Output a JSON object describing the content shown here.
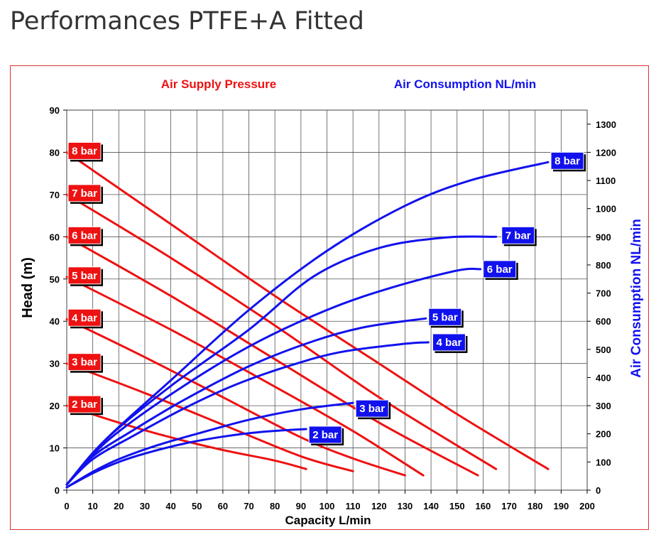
{
  "page": {
    "title": "Performances PTFE+A Fitted"
  },
  "chart_data": {
    "type": "line",
    "header_left": "Air Supply Pressure",
    "header_right": "Air Consumption NL/min",
    "xlabel": "Capacity L/min",
    "ylabel": "Head (m)",
    "y2label": "Air Consumption NL/min",
    "xlim": [
      0,
      200
    ],
    "ylim": [
      0,
      90
    ],
    "y2lim": [
      0,
      1350
    ],
    "x_ticks": [
      0,
      10,
      20,
      30,
      40,
      50,
      60,
      70,
      80,
      90,
      100,
      110,
      120,
      130,
      140,
      150,
      160,
      170,
      180,
      190,
      200
    ],
    "y_ticks": [
      0,
      10,
      20,
      30,
      40,
      50,
      60,
      70,
      80,
      90
    ],
    "y2_ticks": [
      0,
      100,
      200,
      300,
      400,
      500,
      600,
      700,
      800,
      900,
      1000,
      1100,
      1200,
      1300
    ],
    "grid": true,
    "colors": {
      "head": "#ee1111",
      "air": "#1111ee",
      "frame": "#e03030"
    },
    "head_series": [
      {
        "name": "2 bar",
        "points": [
          [
            0,
            20
          ],
          [
            20,
            16
          ],
          [
            40,
            12.5
          ],
          [
            60,
            9.5
          ],
          [
            80,
            7
          ],
          [
            92,
            5
          ]
        ]
      },
      {
        "name": "3 bar",
        "points": [
          [
            0,
            30
          ],
          [
            30,
            23
          ],
          [
            60,
            15.5
          ],
          [
            90,
            8
          ],
          [
            110,
            4.5
          ]
        ]
      },
      {
        "name": "4 bar",
        "points": [
          [
            0,
            40.5
          ],
          [
            30,
            31.5
          ],
          [
            60,
            22
          ],
          [
            90,
            12.5
          ],
          [
            110,
            7.5
          ],
          [
            130,
            3.5
          ]
        ]
      },
      {
        "name": "5 bar",
        "points": [
          [
            0,
            50.5
          ],
          [
            40,
            38
          ],
          [
            80,
            24.5
          ],
          [
            110,
            14
          ],
          [
            137,
            3.5
          ]
        ]
      },
      {
        "name": "6 bar",
        "points": [
          [
            0,
            60
          ],
          [
            40,
            46
          ],
          [
            80,
            31
          ],
          [
            120,
            16
          ],
          [
            158,
            3.5
          ]
        ]
      },
      {
        "name": "7 bar",
        "points": [
          [
            0,
            70
          ],
          [
            40,
            55
          ],
          [
            80,
            39
          ],
          [
            120,
            22
          ],
          [
            165,
            5
          ]
        ]
      },
      {
        "name": "8 bar",
        "points": [
          [
            0,
            80
          ],
          [
            40,
            63
          ],
          [
            80,
            46
          ],
          [
            120,
            30
          ],
          [
            150,
            18
          ],
          [
            185,
            5
          ]
        ]
      }
    ],
    "air_series": [
      {
        "name": "2 bar",
        "points": [
          [
            0,
            10
          ],
          [
            10,
            60
          ],
          [
            20,
            100
          ],
          [
            30,
            130
          ],
          [
            45,
            165
          ],
          [
            60,
            190
          ],
          [
            75,
            207
          ],
          [
            92,
            217
          ]
        ]
      },
      {
        "name": "3 bar",
        "points": [
          [
            0,
            10
          ],
          [
            10,
            65
          ],
          [
            20,
            110
          ],
          [
            35,
            160
          ],
          [
            50,
            200
          ],
          [
            70,
            250
          ],
          [
            90,
            287
          ],
          [
            110,
            310
          ]
        ]
      },
      {
        "name": "4 bar",
        "points": [
          [
            0,
            20
          ],
          [
            10,
            110
          ],
          [
            25,
            190
          ],
          [
            45,
            290
          ],
          [
            65,
            375
          ],
          [
            85,
            440
          ],
          [
            105,
            490
          ],
          [
            130,
            520
          ],
          [
            130,
            520
          ],
          [
            139,
            525
          ]
        ]
      },
      {
        "name": "5 bar",
        "points": [
          [
            0,
            20
          ],
          [
            10,
            120
          ],
          [
            25,
            210
          ],
          [
            45,
            320
          ],
          [
            70,
            440
          ],
          [
            95,
            530
          ],
          [
            115,
            580
          ],
          [
            138,
            610
          ]
        ]
      },
      {
        "name": "6 bar",
        "points": [
          [
            0,
            20
          ],
          [
            15,
            170
          ],
          [
            40,
            340
          ],
          [
            70,
            510
          ],
          [
            100,
            640
          ],
          [
            125,
            720
          ],
          [
            150,
            780
          ],
          [
            159,
            785
          ]
        ]
      },
      {
        "name": "7 bar",
        "points": [
          [
            0,
            20
          ],
          [
            15,
            180
          ],
          [
            40,
            370
          ],
          [
            70,
            570
          ],
          [
            95,
            760
          ],
          [
            120,
            860
          ],
          [
            145,
            897
          ],
          [
            165,
            900
          ]
        ]
      },
      {
        "name": "8 bar",
        "points": [
          [
            0,
            20
          ],
          [
            15,
            180
          ],
          [
            40,
            390
          ],
          [
            70,
            640
          ],
          [
            100,
            850
          ],
          [
            130,
            1010
          ],
          [
            155,
            1100
          ],
          [
            185,
            1165
          ]
        ]
      }
    ]
  }
}
